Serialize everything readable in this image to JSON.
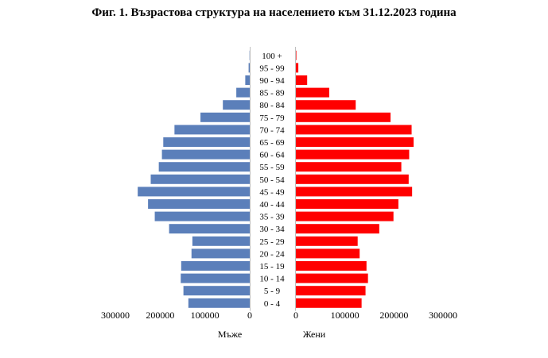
{
  "chart_data": {
    "type": "bar",
    "title": "Фиг. 1. Възрастова структура на населението към 31.12.2023 година",
    "categories": [
      "100 +",
      "95 - 99",
      "90 - 94",
      "85 - 89",
      "80 - 84",
      "75 - 79",
      "70 - 74",
      "65 - 69",
      "60 - 64",
      "55 - 59",
      "50 - 54",
      "45 - 49",
      "40 - 44",
      "35 - 39",
      "30 - 34",
      "25 - 29",
      "20 - 24",
      "15 - 19",
      "10 - 14",
      "5 - 9",
      "0 - 4"
    ],
    "series": [
      {
        "name": "Мъже",
        "color": "#5b7fba",
        "values": [
          500,
          2500,
          10000,
          30000,
          60000,
          110000,
          168000,
          193000,
          196000,
          203000,
          221000,
          250000,
          227000,
          212000,
          180000,
          128000,
          130000,
          153000,
          154000,
          148000,
          137000
        ]
      },
      {
        "name": "Жени",
        "color": "#ff0000",
        "values": [
          1000,
          5000,
          23000,
          68000,
          122000,
          193000,
          236000,
          240000,
          231000,
          215000,
          230000,
          237000,
          209000,
          199000,
          170000,
          126000,
          130000,
          144000,
          147000,
          142000,
          134000
        ]
      }
    ],
    "left_axis": {
      "ticks": [
        "300000",
        "200000",
        "100000",
        "0"
      ],
      "label": "Мъже",
      "range": [
        0,
        300000
      ]
    },
    "right_axis": {
      "ticks": [
        "0",
        "100000",
        "200000",
        "300000"
      ],
      "label": "Жени",
      "range": [
        0,
        300000
      ]
    }
  }
}
